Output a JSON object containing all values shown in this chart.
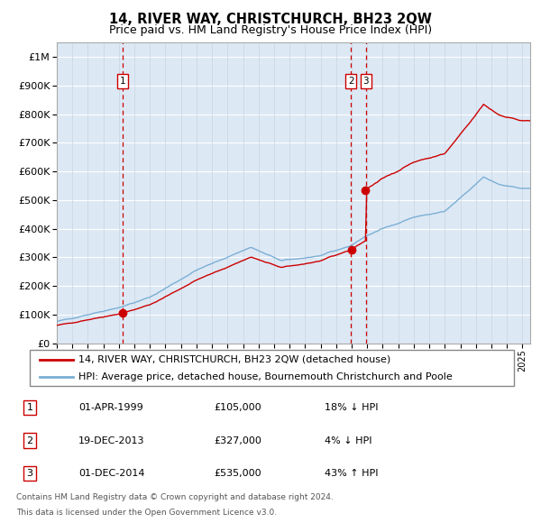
{
  "title": "14, RIVER WAY, CHRISTCHURCH, BH23 2QW",
  "subtitle": "Price paid vs. HM Land Registry's House Price Index (HPI)",
  "legend_line1": "14, RIVER WAY, CHRISTCHURCH, BH23 2QW (detached house)",
  "legend_line2": "HPI: Average price, detached house, Bournemouth Christchurch and Poole",
  "footer1": "Contains HM Land Registry data © Crown copyright and database right 2024.",
  "footer2": "This data is licensed under the Open Government Licence v3.0.",
  "transactions": [
    {
      "num": 1,
      "date": "01-APR-1999",
      "price": 105000,
      "hpi_rel": "18% ↓ HPI",
      "x_year": 1999.25
    },
    {
      "num": 2,
      "date": "19-DEC-2013",
      "price": 327000,
      "hpi_rel": "4% ↓ HPI",
      "x_year": 2013.96
    },
    {
      "num": 3,
      "date": "01-DEC-2014",
      "price": 535000,
      "hpi_rel": "43% ↑ HPI",
      "x_year": 2014.92
    }
  ],
  "hpi_color": "#7bafd4",
  "price_color": "#cc0000",
  "bg_color": "#dde8f5",
  "grid_color_h": "#ffffff",
  "grid_color_v": "#c8d4e0",
  "vline_color": "#cc0000",
  "marker_color": "#cc0000",
  "ylim": [
    0,
    1050000
  ],
  "xlim_start": 1995.0,
  "xlim_end": 2025.5,
  "yticks": [
    0,
    100000,
    200000,
    300000,
    400000,
    500000,
    600000,
    700000,
    800000,
    900000,
    1000000
  ],
  "ylabels": [
    "£0",
    "£100K",
    "£200K",
    "£300K",
    "£400K",
    "£500K",
    "£600K",
    "£700K",
    "£800K",
    "£900K",
    "£1M"
  ]
}
